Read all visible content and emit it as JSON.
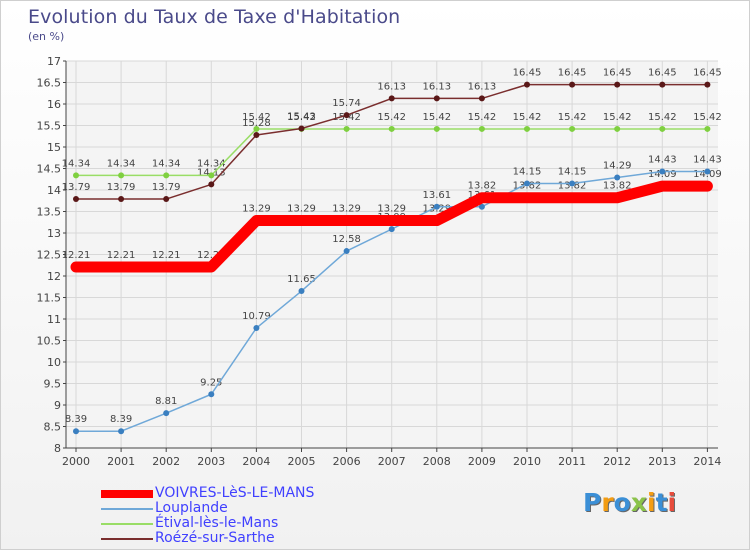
{
  "header": {
    "title": "Evolution du Taux de Taxe d'Habitation",
    "unit": "(en %)"
  },
  "brand": {
    "text": "Proxiti",
    "letters": [
      "P",
      "r",
      "o",
      "x",
      "i",
      "t",
      "i"
    ],
    "colors": [
      "#3b8fd6",
      "#f39c12",
      "#3b8fd6",
      "#8bc34a",
      "#f39c12",
      "#3b8fd6",
      "#e74c3c"
    ]
  },
  "chart_data": {
    "type": "line",
    "title": "Evolution du Taux de Taxe d'Habitation",
    "ylabel": "(en %)",
    "xlabel": "",
    "x": [
      "2000",
      "2001",
      "2002",
      "2003",
      "2004",
      "2005",
      "2006",
      "2007",
      "2008",
      "2009",
      "2010",
      "2011",
      "2012",
      "2013",
      "2014"
    ],
    "ylim": [
      8,
      17
    ],
    "yticks": [
      "8",
      "8.5",
      "9",
      "9.5",
      "10",
      "10.5",
      "11",
      "11.5",
      "12",
      "12.5",
      "13",
      "13.5",
      "14",
      "14.5",
      "15",
      "15.5",
      "16",
      "16.5",
      "17"
    ],
    "grid": true,
    "legend_position": "bottom-left",
    "series": [
      {
        "name": "VOIVRES-LèS-LE-MANS",
        "color": "#ff0000",
        "values": [
          12.21,
          12.21,
          12.21,
          12.21,
          13.29,
          13.29,
          13.29,
          13.29,
          13.29,
          13.82,
          13.82,
          13.82,
          13.82,
          14.09,
          14.09
        ],
        "labels": [
          "12.21",
          "12.21",
          "12.21",
          "12.21",
          "13.29",
          "13.29",
          "13.29",
          "13.29",
          "13.29",
          "13.82",
          "13.82",
          "13.82",
          "13.82",
          "14.09",
          "14.09"
        ]
      },
      {
        "name": "Louplande",
        "color": "#6fa8d8",
        "values": [
          8.39,
          8.39,
          8.81,
          9.25,
          10.79,
          11.65,
          12.58,
          13.09,
          13.61,
          13.61,
          14.15,
          14.15,
          14.29,
          14.43,
          14.43
        ],
        "labels": [
          "8.39",
          "8.39",
          "8.81",
          "9.25",
          "10.79",
          "11.65",
          "12.58",
          "13.09",
          "13.61",
          "13.61",
          "14.15",
          "14.15",
          "14.29",
          "14.43",
          "14.43"
        ]
      },
      {
        "name": "Étival-lès-le-Mans",
        "color": "#99dd66",
        "values": [
          14.34,
          14.34,
          14.34,
          14.34,
          15.42,
          15.42,
          15.42,
          15.42,
          15.42,
          15.42,
          15.42,
          15.42,
          15.42,
          15.42,
          15.42
        ],
        "labels": [
          "14.34",
          "14.34",
          "14.34",
          "14.34",
          "15.42",
          "15.42",
          "15.42",
          "15.42",
          "15.42",
          "15.42",
          "15.42",
          "15.42",
          "15.42",
          "15.42",
          "15.42"
        ]
      },
      {
        "name": "Roézé-sur-Sarthe",
        "color": "#7a2e2e",
        "values": [
          13.79,
          13.79,
          13.79,
          14.13,
          15.28,
          15.43,
          15.74,
          16.13,
          16.13,
          16.13,
          16.45,
          16.45,
          16.45,
          16.45,
          16.45
        ],
        "labels": [
          "13.79",
          "13.79",
          "13.79",
          "14.13",
          "15.28",
          "15.43",
          "15.74",
          "16.13",
          "16.13",
          "16.13",
          "16.45",
          "16.45",
          "16.45",
          "16.45",
          "16.45"
        ]
      }
    ]
  }
}
